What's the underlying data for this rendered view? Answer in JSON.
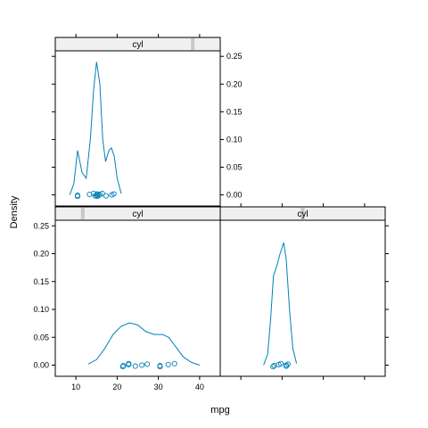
{
  "chart_data": {
    "type": "density",
    "xlabel": "mpg",
    "ylabel": "Density",
    "xlim": [
      5,
      45
    ],
    "ylim": [
      -0.02,
      0.26
    ],
    "x_ticks": [
      10,
      20,
      30,
      40
    ],
    "y_ticks": [
      0.0,
      0.05,
      0.1,
      0.15,
      0.2,
      0.25
    ],
    "y_tick_labels": [
      "0.00",
      "0.05",
      "0.10",
      "0.15",
      "0.20",
      "0.25"
    ],
    "panels": [
      {
        "strip_label": "cyl",
        "position": "top-left",
        "strip_marker": 3,
        "points": [
          10.4,
          10.4,
          13.3,
          14.3,
          14.7,
          15.0,
          15.2,
          15.2,
          15.5,
          15.8,
          16.4,
          17.3,
          18.7,
          19.2
        ],
        "curve": [
          [
            8.5,
            0.0
          ],
          [
            9.5,
            0.02
          ],
          [
            10.4,
            0.08
          ],
          [
            11.5,
            0.04
          ],
          [
            12.5,
            0.03
          ],
          [
            13.5,
            0.1
          ],
          [
            14.3,
            0.19
          ],
          [
            15.0,
            0.24
          ],
          [
            15.8,
            0.2
          ],
          [
            16.5,
            0.1
          ],
          [
            17.2,
            0.06
          ],
          [
            18.0,
            0.08
          ],
          [
            18.6,
            0.085
          ],
          [
            19.3,
            0.07
          ],
          [
            20.0,
            0.03
          ],
          [
            21.0,
            0.002
          ]
        ]
      },
      {
        "strip_label": "cyl",
        "position": "bottom-left",
        "strip_marker": 1,
        "points": [
          21.4,
          21.5,
          22.8,
          22.8,
          24.4,
          26.0,
          27.3,
          30.4,
          30.4,
          32.4,
          33.9
        ],
        "curve": [
          [
            13.0,
            0.002
          ],
          [
            15.0,
            0.01
          ],
          [
            17.0,
            0.03
          ],
          [
            19.0,
            0.055
          ],
          [
            21.0,
            0.07
          ],
          [
            23.0,
            0.076
          ],
          [
            25.0,
            0.072
          ],
          [
            27.0,
            0.06
          ],
          [
            29.0,
            0.055
          ],
          [
            31.0,
            0.055
          ],
          [
            32.5,
            0.05
          ],
          [
            34.0,
            0.035
          ],
          [
            36.0,
            0.015
          ],
          [
            38.0,
            0.005
          ],
          [
            40.0,
            0.0
          ]
        ]
      },
      {
        "strip_label": "cyl",
        "position": "bottom-right",
        "strip_marker": 2,
        "points": [
          17.8,
          18.1,
          19.2,
          19.7,
          21.0,
          21.0,
          21.4
        ],
        "curve": [
          [
            15.5,
            0.0
          ],
          [
            16.5,
            0.02
          ],
          [
            17.2,
            0.08
          ],
          [
            17.9,
            0.16
          ],
          [
            18.8,
            0.18
          ],
          [
            19.5,
            0.2
          ],
          [
            20.4,
            0.22
          ],
          [
            21.0,
            0.19
          ],
          [
            21.8,
            0.1
          ],
          [
            22.6,
            0.03
          ],
          [
            23.5,
            0.003
          ]
        ]
      }
    ]
  }
}
